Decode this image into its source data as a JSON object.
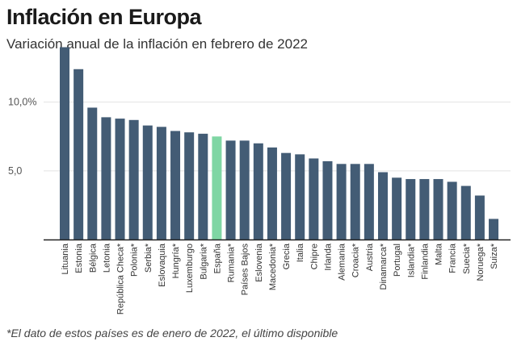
{
  "title": "Inflación en Europa",
  "subtitle": "Variación anual de la inflación en febrero de 2022",
  "footnote": "*El dato de estos países es de enero de 2022, el último disponible",
  "colors": {
    "bar": "#435c75",
    "highlight": "#7fd6a4",
    "grid": "#e3e3e3",
    "axis": "#222222"
  },
  "chart_data": {
    "type": "bar",
    "title": "Inflación en Europa",
    "subtitle": "Variación anual de la inflación en febrero de 2022",
    "xlabel": "",
    "ylabel": "",
    "ylim": [
      0,
      14.5
    ],
    "yticks": [
      5,
      10
    ],
    "ytick_labels": [
      "5,0",
      "10,0%"
    ],
    "grid": true,
    "highlight": "España",
    "categories": [
      "Lituania",
      "Estonia",
      "Bélgica",
      "Letonia",
      "República Checa*",
      "Polonia*",
      "Serbia*",
      "Eslovaquia",
      "Hungría*",
      "Luxemburgo",
      "Bulgaria*",
      "España",
      "Rumania*",
      "Países Bajos",
      "Eslovenia",
      "Macedonia*",
      "Grecia",
      "Italia",
      "Chipre",
      "Irlanda",
      "Alemania",
      "Croacia*",
      "Austria",
      "Dinamarca*",
      "Portugal",
      "Islandia*",
      "Finlandia",
      "Malta",
      "Francia",
      "Suecia*",
      "Noruega*",
      "Suiza*"
    ],
    "values": [
      14.0,
      12.4,
      9.6,
      8.9,
      8.8,
      8.7,
      8.3,
      8.2,
      7.9,
      7.8,
      7.7,
      7.5,
      7.2,
      7.2,
      7.0,
      6.7,
      6.3,
      6.2,
      5.9,
      5.7,
      5.5,
      5.5,
      5.5,
      4.9,
      4.5,
      4.4,
      4.4,
      4.4,
      4.2,
      3.9,
      3.2,
      1.5
    ]
  }
}
